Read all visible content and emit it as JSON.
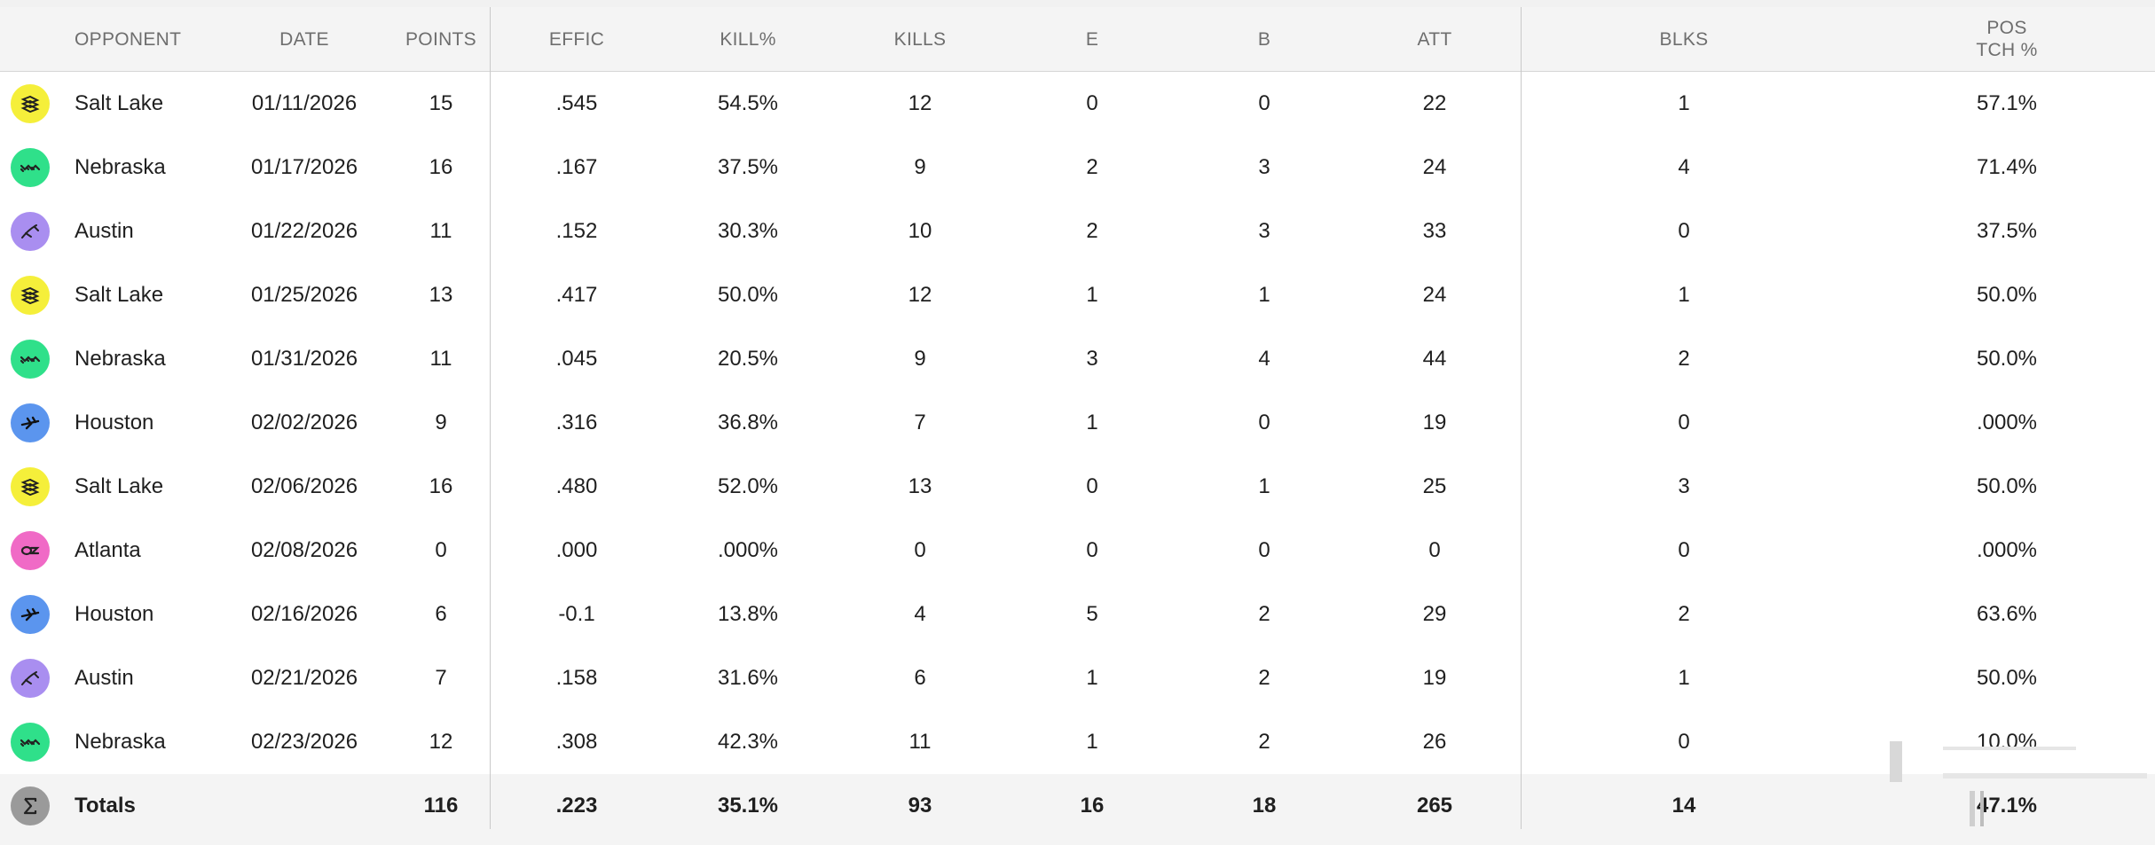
{
  "headers": {
    "opponent": "OPPONENT",
    "date": "DATE",
    "points": "POINTS",
    "effic": "EFFIC",
    "kill_pct": "KILL%",
    "kills": "KILLS",
    "e": "E",
    "b": "B",
    "att": "ATT",
    "blks": "BLKS",
    "pos_tch_line1": "POS",
    "pos_tch_line2": "TCH %"
  },
  "colors": {
    "salt_lake": "#f5ef3a",
    "nebraska": "#2fe08a",
    "austin": "#a98ef0",
    "houston": "#5b95ee",
    "atlanta": "#f06ac6",
    "totals": "#9a9a9a"
  },
  "rows": [
    {
      "team": "salt-lake",
      "icon": "salt-lake-logo-icon",
      "opponent": "Salt Lake",
      "date": "01/11/2026",
      "points": "15",
      "effic": ".545",
      "kill_pct": "54.5%",
      "kills": "12",
      "e": "0",
      "b": "0",
      "att": "22",
      "blks": "1",
      "pos_tch": "57.1%"
    },
    {
      "team": "nebraska",
      "icon": "nebraska-logo-icon",
      "opponent": "Nebraska",
      "date": "01/17/2026",
      "points": "16",
      "effic": ".167",
      "kill_pct": "37.5%",
      "kills": "9",
      "e": "2",
      "b": "3",
      "att": "24",
      "blks": "4",
      "pos_tch": "71.4%"
    },
    {
      "team": "austin",
      "icon": "austin-logo-icon",
      "opponent": "Austin",
      "date": "01/22/2026",
      "points": "11",
      "effic": ".152",
      "kill_pct": "30.3%",
      "kills": "10",
      "e": "2",
      "b": "3",
      "att": "33",
      "blks": "0",
      "pos_tch": "37.5%"
    },
    {
      "team": "salt-lake",
      "icon": "salt-lake-logo-icon",
      "opponent": "Salt Lake",
      "date": "01/25/2026",
      "points": "13",
      "effic": ".417",
      "kill_pct": "50.0%",
      "kills": "12",
      "e": "1",
      "b": "1",
      "att": "24",
      "blks": "1",
      "pos_tch": "50.0%"
    },
    {
      "team": "nebraska",
      "icon": "nebraska-logo-icon",
      "opponent": "Nebraska",
      "date": "01/31/2026",
      "points": "11",
      "effic": ".045",
      "kill_pct": "20.5%",
      "kills": "9",
      "e": "3",
      "b": "4",
      "att": "44",
      "blks": "2",
      "pos_tch": "50.0%"
    },
    {
      "team": "houston",
      "icon": "houston-logo-icon",
      "opponent": "Houston",
      "date": "02/02/2026",
      "points": "9",
      "effic": ".316",
      "kill_pct": "36.8%",
      "kills": "7",
      "e": "1",
      "b": "0",
      "att": "19",
      "blks": "0",
      "pos_tch": ".000%"
    },
    {
      "team": "salt-lake",
      "icon": "salt-lake-logo-icon",
      "opponent": "Salt Lake",
      "date": "02/06/2026",
      "points": "16",
      "effic": ".480",
      "kill_pct": "52.0%",
      "kills": "13",
      "e": "0",
      "b": "1",
      "att": "25",
      "blks": "3",
      "pos_tch": "50.0%"
    },
    {
      "team": "atlanta",
      "icon": "atlanta-logo-icon",
      "opponent": "Atlanta",
      "date": "02/08/2026",
      "points": "0",
      "effic": ".000",
      "kill_pct": ".000%",
      "kills": "0",
      "e": "0",
      "b": "0",
      "att": "0",
      "blks": "0",
      "pos_tch": ".000%"
    },
    {
      "team": "houston",
      "icon": "houston-logo-icon",
      "opponent": "Houston",
      "date": "02/16/2026",
      "points": "6",
      "effic": "-0.1",
      "kill_pct": "13.8%",
      "kills": "4",
      "e": "5",
      "b": "2",
      "att": "29",
      "blks": "2",
      "pos_tch": "63.6%"
    },
    {
      "team": "austin",
      "icon": "austin-logo-icon",
      "opponent": "Austin",
      "date": "02/21/2026",
      "points": "7",
      "effic": ".158",
      "kill_pct": "31.6%",
      "kills": "6",
      "e": "1",
      "b": "2",
      "att": "19",
      "blks": "1",
      "pos_tch": "50.0%"
    },
    {
      "team": "nebraska",
      "icon": "nebraska-logo-icon",
      "opponent": "Nebraska",
      "date": "02/23/2026",
      "points": "12",
      "effic": ".308",
      "kill_pct": "42.3%",
      "kills": "11",
      "e": "1",
      "b": "2",
      "att": "26",
      "blks": "0",
      "pos_tch": "10.0%"
    }
  ],
  "totals": {
    "icon": "sigma-icon",
    "label": "Totals",
    "date": "",
    "points": "116",
    "effic": ".223",
    "kill_pct": "35.1%",
    "kills": "93",
    "e": "16",
    "b": "18",
    "att": "265",
    "blks": "14",
    "pos_tch": "47.1%"
  }
}
